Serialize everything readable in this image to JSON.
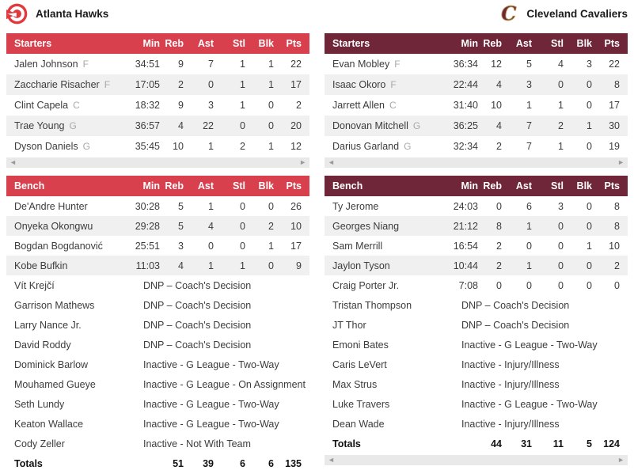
{
  "colors": {
    "hawks_red": "#D9404E",
    "cavs_wine": "#6F2639",
    "alt_row": "#F0F0F0",
    "scrollbar_bg": "#E9E9E9",
    "hawks_logo_red": "#E03A3E",
    "cavs_logo_gold": "#B08F4F"
  },
  "icons": {
    "scroll_left": "◄",
    "scroll_right": "►",
    "hawks": "hawks-logo",
    "cavaliers": "cavaliers-logo"
  },
  "teams": [
    {
      "name": "Atlanta Hawks",
      "logo_icon": "hawks-logo",
      "accent_color": "#D9404E",
      "sections": [
        {
          "label": "Starters",
          "columns": [
            "Min",
            "Reb",
            "Ast",
            "Stl",
            "Blk",
            "Pts"
          ],
          "rows": [
            {
              "name": "Jalen Johnson",
              "pos": "F",
              "stats": [
                "34:51",
                "9",
                "7",
                "1",
                "1",
                "22"
              ]
            },
            {
              "name": "Zaccharie Risacher",
              "pos": "F",
              "stats": [
                "17:05",
                "2",
                "0",
                "1",
                "1",
                "17"
              ]
            },
            {
              "name": "Clint Capela",
              "pos": "C",
              "stats": [
                "18:32",
                "9",
                "3",
                "1",
                "0",
                "2"
              ]
            },
            {
              "name": "Trae Young",
              "pos": "G",
              "stats": [
                "36:57",
                "4",
                "22",
                "0",
                "0",
                "20"
              ]
            },
            {
              "name": "Dyson Daniels",
              "pos": "G",
              "stats": [
                "35:45",
                "10",
                "1",
                "2",
                "1",
                "12"
              ]
            }
          ],
          "scrollbar": true
        },
        {
          "label": "Bench",
          "columns": [
            "Min",
            "Reb",
            "Ast",
            "Stl",
            "Blk",
            "Pts"
          ],
          "rows": [
            {
              "name": "De'Andre Hunter",
              "stats": [
                "30:28",
                "5",
                "1",
                "0",
                "0",
                "26"
              ]
            },
            {
              "name": "Onyeka Okongwu",
              "stats": [
                "29:28",
                "5",
                "4",
                "0",
                "2",
                "10"
              ]
            },
            {
              "name": "Bogdan Bogdanović",
              "stats": [
                "25:51",
                "3",
                "0",
                "0",
                "1",
                "17"
              ]
            },
            {
              "name": "Kobe Bufkin",
              "stats": [
                "11:03",
                "4",
                "1",
                "1",
                "0",
                "9"
              ]
            },
            {
              "name": "Vít Krejčí",
              "status": "DNP – Coach's Decision"
            },
            {
              "name": "Garrison Mathews",
              "status": "DNP – Coach's Decision"
            },
            {
              "name": "Larry Nance Jr.",
              "status": "DNP – Coach's Decision"
            },
            {
              "name": "David Roddy",
              "status": "DNP – Coach's Decision"
            },
            {
              "name": "Dominick Barlow",
              "status": "Inactive - G League - Two-Way"
            },
            {
              "name": "Mouhamed Gueye",
              "status": "Inactive - G League - On Assignment"
            },
            {
              "name": "Seth Lundy",
              "status": "Inactive - G League - Two-Way"
            },
            {
              "name": "Keaton Wallace",
              "status": "Inactive - G League - Two-Way"
            },
            {
              "name": "Cody Zeller",
              "status": "Inactive - Not With Team"
            }
          ],
          "totals": {
            "label": "Totals",
            "stats": [
              "",
              "51",
              "39",
              "6",
              "6",
              "135"
            ]
          },
          "scrollbar": false
        }
      ]
    },
    {
      "name": "Cleveland Cavaliers",
      "logo_icon": "cavaliers-logo",
      "accent_color": "#6F2639",
      "sections": [
        {
          "label": "Starters",
          "columns": [
            "Min",
            "Reb",
            "Ast",
            "Stl",
            "Blk",
            "Pts"
          ],
          "rows": [
            {
              "name": "Evan Mobley",
              "pos": "F",
              "stats": [
                "36:34",
                "12",
                "5",
                "4",
                "3",
                "22"
              ]
            },
            {
              "name": "Isaac Okoro",
              "pos": "F",
              "stats": [
                "22:44",
                "4",
                "3",
                "0",
                "0",
                "8"
              ]
            },
            {
              "name": "Jarrett Allen",
              "pos": "C",
              "stats": [
                "31:40",
                "10",
                "1",
                "1",
                "0",
                "17"
              ]
            },
            {
              "name": "Donovan Mitchell",
              "pos": "G",
              "stats": [
                "36:25",
                "4",
                "7",
                "2",
                "1",
                "30"
              ]
            },
            {
              "name": "Darius Garland",
              "pos": "G",
              "stats": [
                "32:34",
                "2",
                "7",
                "1",
                "0",
                "19"
              ]
            }
          ],
          "scrollbar": true
        },
        {
          "label": "Bench",
          "columns": [
            "Min",
            "Reb",
            "Ast",
            "Stl",
            "Blk",
            "Pts"
          ],
          "rows": [
            {
              "name": "Ty Jerome",
              "stats": [
                "24:03",
                "0",
                "6",
                "3",
                "0",
                "8"
              ]
            },
            {
              "name": "Georges Niang",
              "stats": [
                "21:12",
                "8",
                "1",
                "0",
                "0",
                "8"
              ]
            },
            {
              "name": "Sam Merrill",
              "stats": [
                "16:54",
                "2",
                "0",
                "0",
                "1",
                "10"
              ]
            },
            {
              "name": "Jaylon Tyson",
              "stats": [
                "10:44",
                "2",
                "1",
                "0",
                "0",
                "2"
              ]
            },
            {
              "name": "Craig Porter Jr.",
              "stats": [
                "7:08",
                "0",
                "0",
                "0",
                "0",
                "0"
              ]
            },
            {
              "name": "Tristan Thompson",
              "status": "DNP – Coach's Decision"
            },
            {
              "name": "JT Thor",
              "status": "DNP – Coach's Decision"
            },
            {
              "name": "Emoni Bates",
              "status": "Inactive - G League - Two-Way"
            },
            {
              "name": "Caris LeVert",
              "status": "Inactive - Injury/Illness"
            },
            {
              "name": "Max Strus",
              "status": "Inactive - Injury/Illness"
            },
            {
              "name": "Luke Travers",
              "status": "Inactive - G League - Two-Way"
            },
            {
              "name": "Dean Wade",
              "status": "Inactive - Injury/Illness"
            }
          ],
          "totals": {
            "label": "Totals",
            "stats": [
              "",
              "44",
              "31",
              "11",
              "5",
              "124"
            ]
          },
          "scrollbar": true
        }
      ]
    }
  ]
}
